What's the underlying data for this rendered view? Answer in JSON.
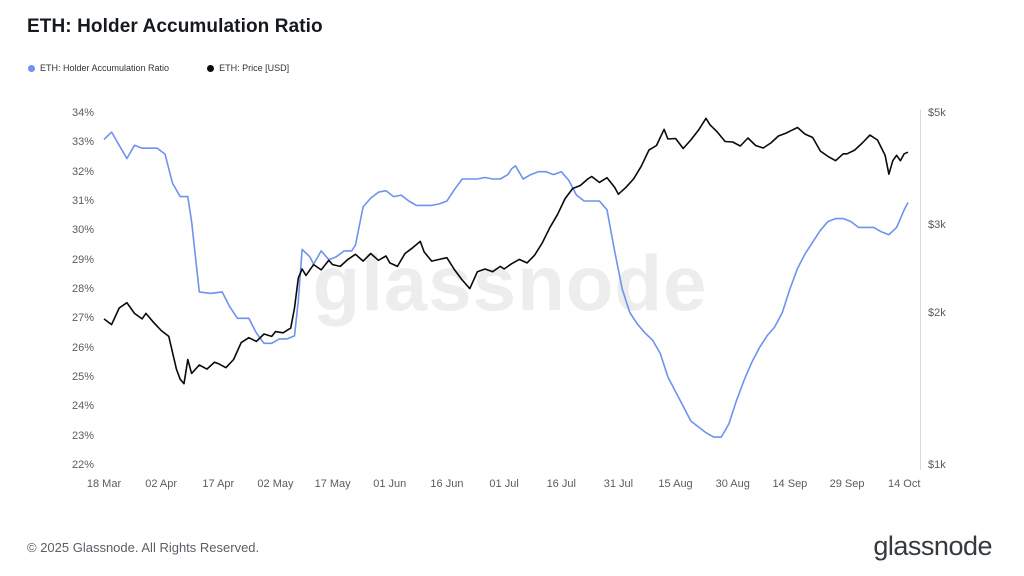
{
  "title": "ETH: Holder Accumulation Ratio",
  "watermark": "glassnode",
  "legend": [
    {
      "label": "ETH: Holder Accumulation Ratio",
      "color": "#6f92ed"
    },
    {
      "label": "ETH: Price [USD]",
      "color": "#0a0a0a"
    }
  ],
  "footer": {
    "copyright": "© 2025 Glassnode. All Rights Reserved.",
    "logo": "glassnode"
  },
  "chart_data": {
    "type": "line",
    "title": "ETH: Holder Accumulation Ratio",
    "grid": false,
    "legend_position": "top-left",
    "x_axis": {
      "unit": "date (days since 18 Mar)",
      "range": [
        0,
        211
      ],
      "ticks": [
        {
          "v": 0,
          "label": "18 Mar"
        },
        {
          "v": 15,
          "label": "02 Apr"
        },
        {
          "v": 30,
          "label": "17 Apr"
        },
        {
          "v": 45,
          "label": "02 May"
        },
        {
          "v": 60,
          "label": "17 May"
        },
        {
          "v": 75,
          "label": "01 Jun"
        },
        {
          "v": 90,
          "label": "16 Jun"
        },
        {
          "v": 105,
          "label": "01 Jul"
        },
        {
          "v": 120,
          "label": "16 Jul"
        },
        {
          "v": 135,
          "label": "31 Jul"
        },
        {
          "v": 150,
          "label": "15 Aug"
        },
        {
          "v": 165,
          "label": "30 Aug"
        },
        {
          "v": 180,
          "label": "14 Sep"
        },
        {
          "v": 195,
          "label": "29 Sep"
        },
        {
          "v": 210,
          "label": "14 Oct"
        }
      ]
    },
    "left_axis": {
      "label": "Holder Accumulation Ratio",
      "scale": "linear",
      "range": [
        22,
        34
      ],
      "ticks": [
        {
          "v": 22,
          "label": "22%"
        },
        {
          "v": 23,
          "label": "23%"
        },
        {
          "v": 24,
          "label": "24%"
        },
        {
          "v": 25,
          "label": "25%"
        },
        {
          "v": 26,
          "label": "26%"
        },
        {
          "v": 27,
          "label": "27%"
        },
        {
          "v": 28,
          "label": "28%"
        },
        {
          "v": 29,
          "label": "29%"
        },
        {
          "v": 30,
          "label": "30%"
        },
        {
          "v": 31,
          "label": "31%"
        },
        {
          "v": 32,
          "label": "32%"
        },
        {
          "v": 33,
          "label": "33%"
        },
        {
          "v": 34,
          "label": "34%"
        }
      ]
    },
    "right_axis": {
      "label": "ETH Price [USD]",
      "scale": "log",
      "range": [
        1000,
        5000
      ],
      "ticks": [
        {
          "v": 1000,
          "label": "$1k"
        },
        {
          "v": 2000,
          "label": "$2k"
        },
        {
          "v": 3000,
          "label": "$3k"
        },
        {
          "v": 5000,
          "label": "$5k"
        }
      ]
    },
    "series": [
      {
        "name": "ETH: Holder Accumulation Ratio",
        "axis": "left",
        "color": "#6f92ed",
        "points": [
          [
            0,
            33.1
          ],
          [
            2,
            33.35
          ],
          [
            4,
            32.9
          ],
          [
            6,
            32.45
          ],
          [
            8,
            32.9
          ],
          [
            10,
            32.8
          ],
          [
            12,
            32.8
          ],
          [
            14,
            32.8
          ],
          [
            16,
            32.6
          ],
          [
            18,
            31.6
          ],
          [
            20,
            31.15
          ],
          [
            22,
            31.15
          ],
          [
            23,
            30.3
          ],
          [
            25,
            27.9
          ],
          [
            28,
            27.85
          ],
          [
            31,
            27.9
          ],
          [
            33,
            27.4
          ],
          [
            35,
            27.0
          ],
          [
            38,
            27.0
          ],
          [
            40,
            26.5
          ],
          [
            42,
            26.15
          ],
          [
            44,
            26.15
          ],
          [
            46,
            26.3
          ],
          [
            48,
            26.3
          ],
          [
            50,
            26.4
          ],
          [
            51,
            27.6
          ],
          [
            52,
            29.35
          ],
          [
            54,
            29.1
          ],
          [
            55,
            28.85
          ],
          [
            57,
            29.3
          ],
          [
            59,
            29.0
          ],
          [
            61,
            29.1
          ],
          [
            63,
            29.3
          ],
          [
            65,
            29.3
          ],
          [
            66,
            29.5
          ],
          [
            68,
            30.8
          ],
          [
            70,
            31.1
          ],
          [
            72,
            31.3
          ],
          [
            74,
            31.35
          ],
          [
            76,
            31.15
          ],
          [
            78,
            31.2
          ],
          [
            80,
            31.0
          ],
          [
            82,
            30.85
          ],
          [
            84,
            30.85
          ],
          [
            86,
            30.85
          ],
          [
            88,
            30.9
          ],
          [
            90,
            31.0
          ],
          [
            92,
            31.4
          ],
          [
            94,
            31.75
          ],
          [
            96,
            31.75
          ],
          [
            98,
            31.75
          ],
          [
            100,
            31.8
          ],
          [
            102,
            31.75
          ],
          [
            104,
            31.75
          ],
          [
            106,
            31.9
          ],
          [
            107,
            32.1
          ],
          [
            108,
            32.2
          ],
          [
            110,
            31.75
          ],
          [
            112,
            31.9
          ],
          [
            114,
            32.0
          ],
          [
            116,
            32.0
          ],
          [
            118,
            31.9
          ],
          [
            120,
            32.0
          ],
          [
            122,
            31.7
          ],
          [
            124,
            31.2
          ],
          [
            126,
            31.0
          ],
          [
            128,
            31.0
          ],
          [
            130,
            31.0
          ],
          [
            132,
            30.7
          ],
          [
            134,
            29.3
          ],
          [
            136,
            28.0
          ],
          [
            138,
            27.2
          ],
          [
            140,
            26.8
          ],
          [
            142,
            26.5
          ],
          [
            144,
            26.25
          ],
          [
            146,
            25.8
          ],
          [
            148,
            25.0
          ],
          [
            150,
            24.5
          ],
          [
            152,
            24.0
          ],
          [
            154,
            23.5
          ],
          [
            156,
            23.3
          ],
          [
            158,
            23.1
          ],
          [
            160,
            22.95
          ],
          [
            162,
            22.95
          ],
          [
            164,
            23.4
          ],
          [
            166,
            24.2
          ],
          [
            168,
            24.9
          ],
          [
            170,
            25.5
          ],
          [
            172,
            26.0
          ],
          [
            174,
            26.4
          ],
          [
            176,
            26.7
          ],
          [
            178,
            27.2
          ],
          [
            180,
            28.0
          ],
          [
            182,
            28.7
          ],
          [
            184,
            29.2
          ],
          [
            186,
            29.6
          ],
          [
            188,
            30.0
          ],
          [
            190,
            30.3
          ],
          [
            192,
            30.4
          ],
          [
            194,
            30.4
          ],
          [
            196,
            30.3
          ],
          [
            198,
            30.1
          ],
          [
            200,
            30.1
          ],
          [
            202,
            30.1
          ],
          [
            204,
            29.95
          ],
          [
            206,
            29.85
          ],
          [
            208,
            30.1
          ],
          [
            210,
            30.7
          ],
          [
            211,
            30.95
          ]
        ]
      },
      {
        "name": "ETH: Price [USD]",
        "axis": "right",
        "color": "#0a0a0a",
        "points": [
          [
            0,
            1950
          ],
          [
            2,
            1900
          ],
          [
            4,
            2050
          ],
          [
            6,
            2100
          ],
          [
            8,
            2000
          ],
          [
            10,
            1950
          ],
          [
            11,
            2000
          ],
          [
            13,
            1920
          ],
          [
            15,
            1850
          ],
          [
            17,
            1800
          ],
          [
            19,
            1550
          ],
          [
            20,
            1480
          ],
          [
            21,
            1450
          ],
          [
            22,
            1620
          ],
          [
            23,
            1520
          ],
          [
            25,
            1580
          ],
          [
            27,
            1550
          ],
          [
            29,
            1600
          ],
          [
            30,
            1590
          ],
          [
            32,
            1560
          ],
          [
            34,
            1620
          ],
          [
            36,
            1750
          ],
          [
            38,
            1790
          ],
          [
            40,
            1760
          ],
          [
            42,
            1820
          ],
          [
            44,
            1800
          ],
          [
            45,
            1840
          ],
          [
            47,
            1830
          ],
          [
            49,
            1870
          ],
          [
            50,
            2050
          ],
          [
            51,
            2350
          ],
          [
            52,
            2450
          ],
          [
            53,
            2380
          ],
          [
            55,
            2500
          ],
          [
            57,
            2440
          ],
          [
            59,
            2550
          ],
          [
            60,
            2500
          ],
          [
            62,
            2480
          ],
          [
            64,
            2560
          ],
          [
            66,
            2620
          ],
          [
            68,
            2540
          ],
          [
            70,
            2630
          ],
          [
            72,
            2550
          ],
          [
            74,
            2600
          ],
          [
            75,
            2520
          ],
          [
            77,
            2480
          ],
          [
            79,
            2630
          ],
          [
            81,
            2700
          ],
          [
            83,
            2780
          ],
          [
            84,
            2650
          ],
          [
            86,
            2540
          ],
          [
            88,
            2560
          ],
          [
            90,
            2580
          ],
          [
            92,
            2440
          ],
          [
            94,
            2330
          ],
          [
            96,
            2240
          ],
          [
            98,
            2420
          ],
          [
            100,
            2450
          ],
          [
            102,
            2420
          ],
          [
            104,
            2480
          ],
          [
            105,
            2450
          ],
          [
            107,
            2510
          ],
          [
            109,
            2560
          ],
          [
            111,
            2520
          ],
          [
            113,
            2610
          ],
          [
            115,
            2760
          ],
          [
            117,
            2960
          ],
          [
            119,
            3140
          ],
          [
            121,
            3380
          ],
          [
            123,
            3540
          ],
          [
            125,
            3590
          ],
          [
            127,
            3700
          ],
          [
            128,
            3740
          ],
          [
            130,
            3640
          ],
          [
            132,
            3720
          ],
          [
            134,
            3560
          ],
          [
            135,
            3450
          ],
          [
            137,
            3560
          ],
          [
            139,
            3700
          ],
          [
            141,
            3920
          ],
          [
            143,
            4220
          ],
          [
            145,
            4310
          ],
          [
            147,
            4640
          ],
          [
            148,
            4440
          ],
          [
            150,
            4450
          ],
          [
            152,
            4250
          ],
          [
            154,
            4420
          ],
          [
            156,
            4620
          ],
          [
            158,
            4880
          ],
          [
            159,
            4740
          ],
          [
            161,
            4580
          ],
          [
            163,
            4390
          ],
          [
            165,
            4380
          ],
          [
            167,
            4300
          ],
          [
            169,
            4460
          ],
          [
            171,
            4310
          ],
          [
            173,
            4260
          ],
          [
            175,
            4360
          ],
          [
            177,
            4500
          ],
          [
            179,
            4560
          ],
          [
            180,
            4600
          ],
          [
            182,
            4680
          ],
          [
            184,
            4540
          ],
          [
            186,
            4470
          ],
          [
            188,
            4200
          ],
          [
            190,
            4100
          ],
          [
            192,
            4020
          ],
          [
            194,
            4150
          ],
          [
            195,
            4150
          ],
          [
            197,
            4220
          ],
          [
            199,
            4360
          ],
          [
            201,
            4520
          ],
          [
            203,
            4420
          ],
          [
            205,
            4120
          ],
          [
            206,
            3780
          ],
          [
            207,
            4020
          ],
          [
            208,
            4120
          ],
          [
            209,
            4020
          ],
          [
            210,
            4150
          ],
          [
            211,
            4180
          ]
        ]
      }
    ]
  }
}
